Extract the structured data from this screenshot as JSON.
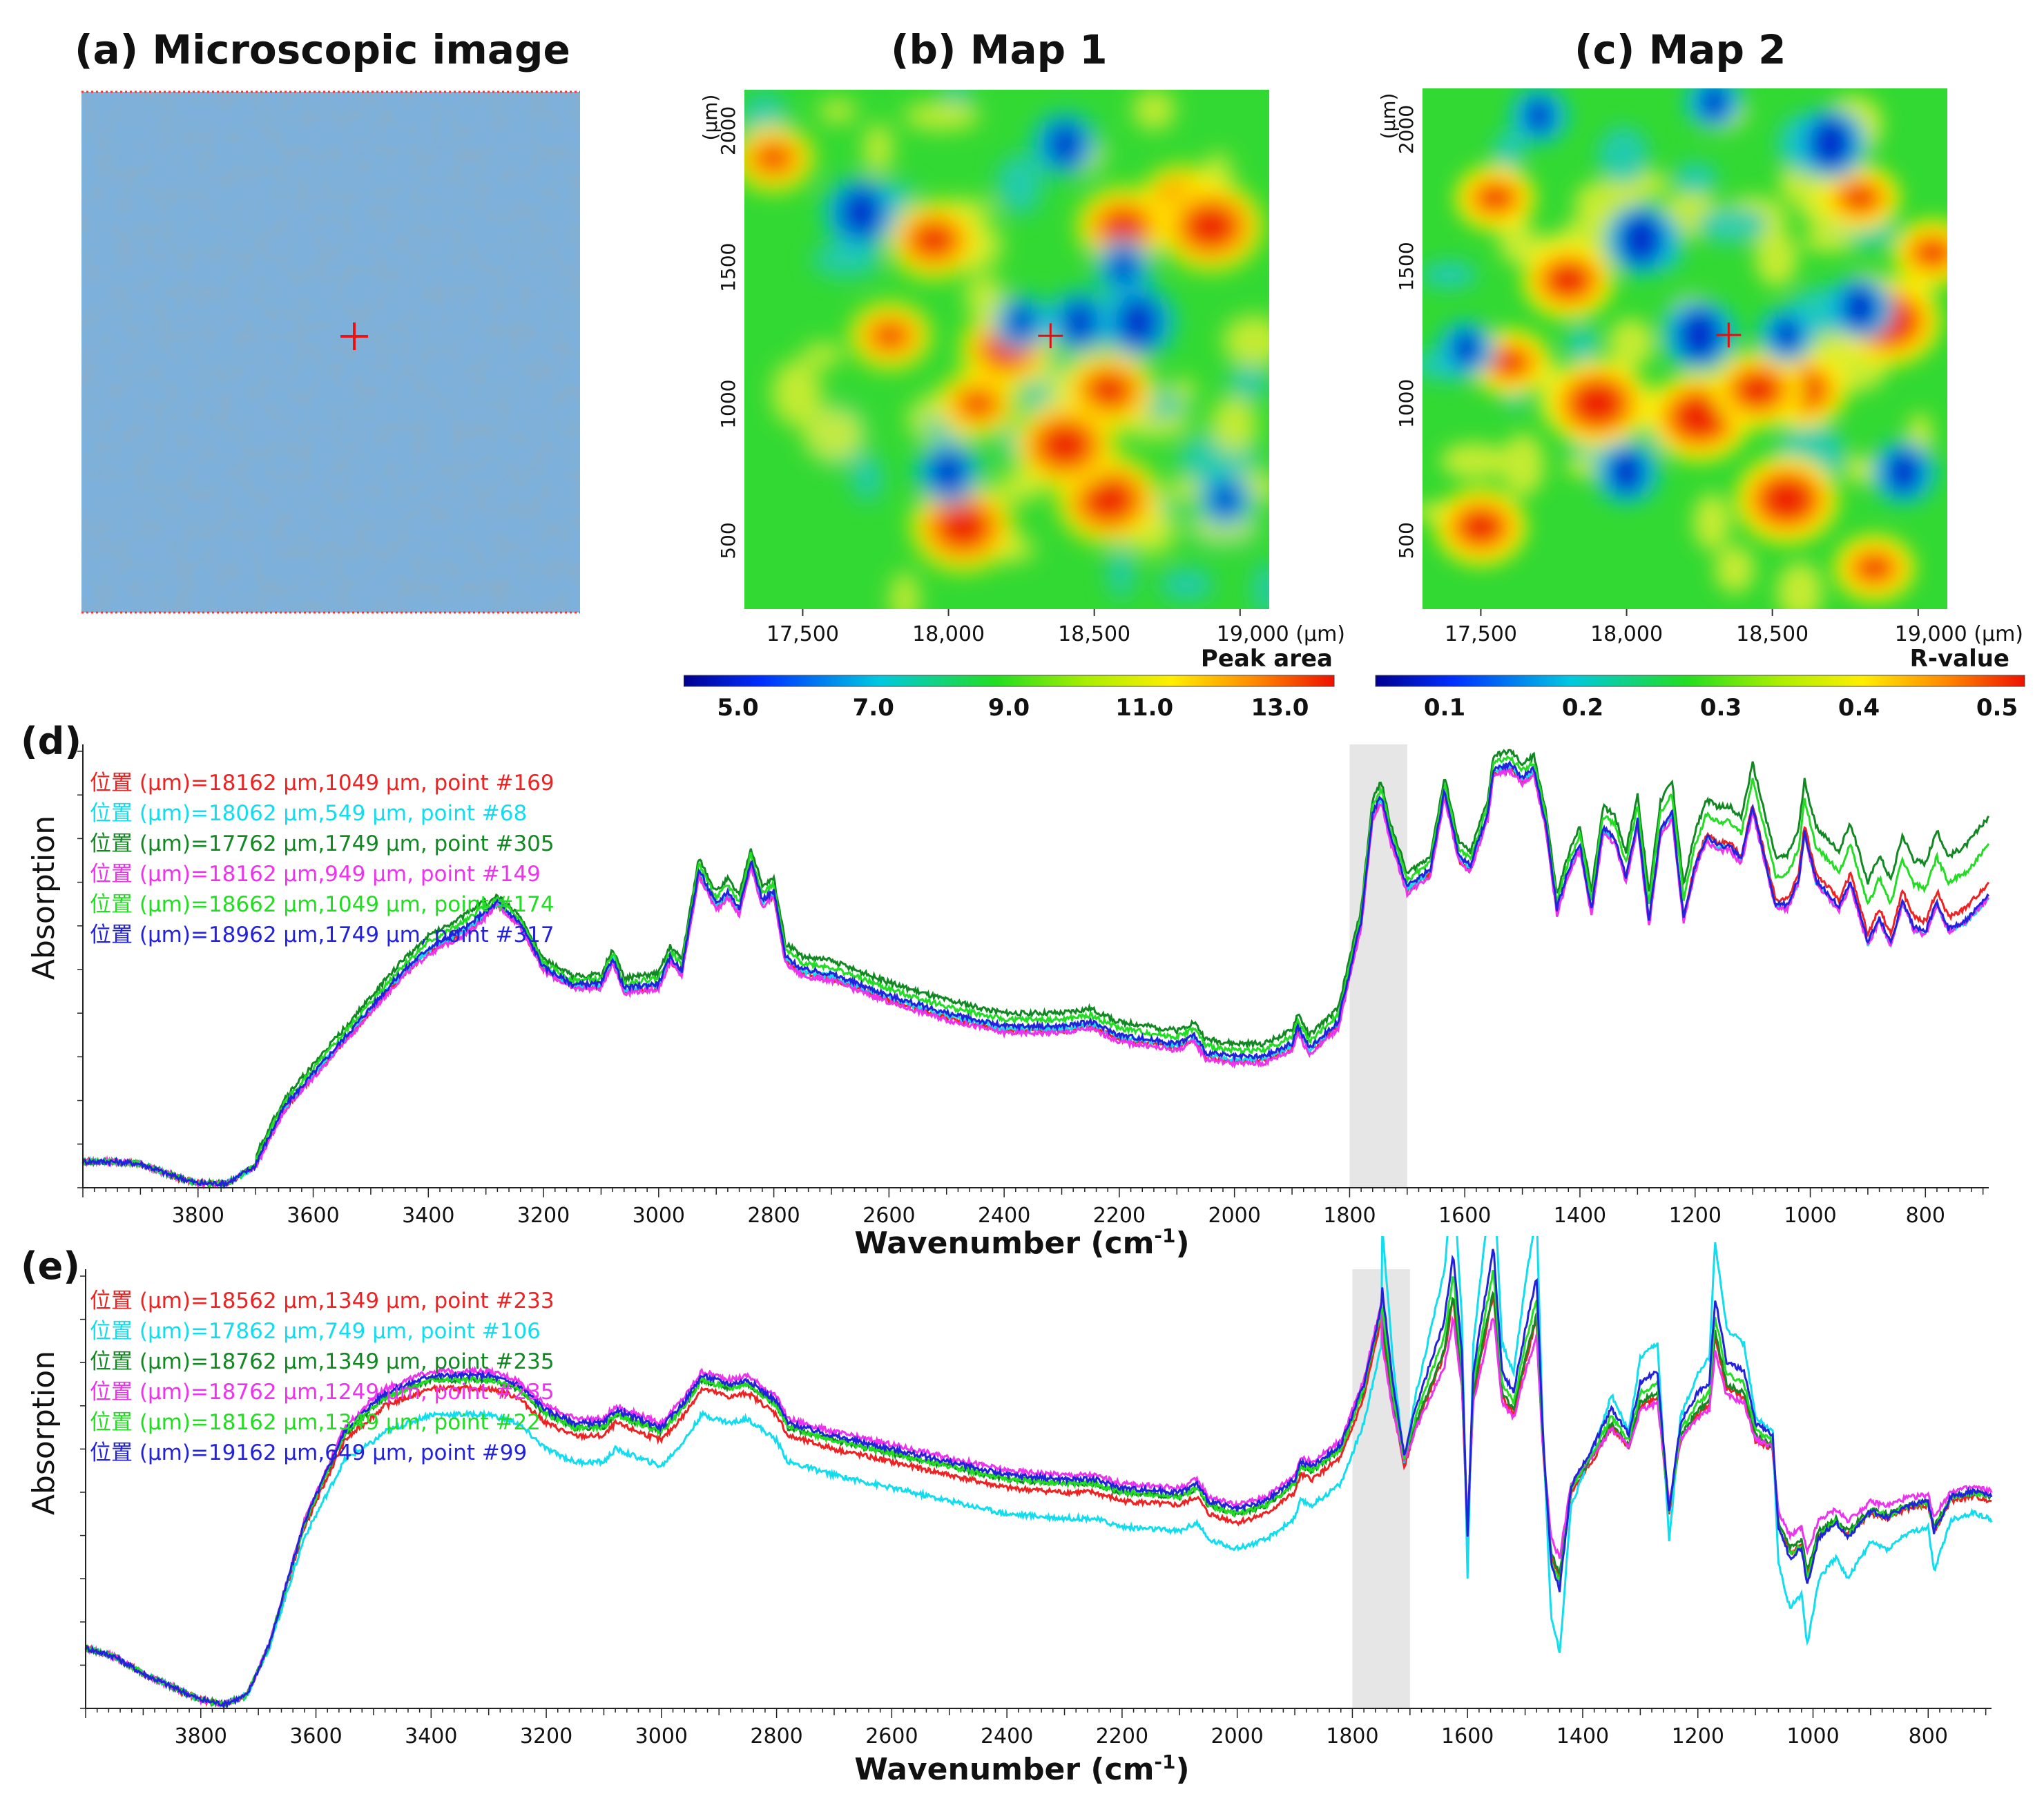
{
  "colors": {
    "red": "#ee2222",
    "cyan": "#11ddee",
    "darkgreen": "#118822",
    "magenta": "#ee33ee",
    "green": "#22dd22",
    "blue": "#2222dd",
    "highlight": "#e6e6e6",
    "micro": "#7aaed8"
  },
  "panels": {
    "a_title": "(a) Microscopic image",
    "b_title": "(b) Map 1",
    "c_title": "(c) Map 2",
    "d_label": "(d)",
    "e_label": "(e)"
  },
  "chart_data": [
    {
      "id": "map1",
      "type": "heatmap",
      "title": "(b) Map 1",
      "x_ticks": [
        "17,500",
        "18,000",
        "18,500",
        "19,000 (μm)"
      ],
      "x_tick_values": [
        17500,
        18000,
        18500,
        19000
      ],
      "y_ticks": [
        "500",
        "1000",
        "1500",
        "2000"
      ],
      "y_tick_values": [
        500,
        1000,
        1500,
        2000
      ],
      "y_unit": "(μm)",
      "xlim": [
        17300,
        19100
      ],
      "ylim": [
        250,
        2150
      ],
      "marker": [
        18350,
        1250
      ],
      "colorbar": {
        "label": "Peak area",
        "ticks": [
          "5.0",
          "7.0",
          "9.0",
          "11.0",
          "13.0"
        ],
        "tick_values": [
          5,
          7,
          9,
          11,
          13
        ],
        "range": [
          4.2,
          13.8
        ]
      },
      "hot_spots": [
        [
          18100,
          1000
        ],
        [
          18550,
          1050
        ],
        [
          18550,
          650
        ],
        [
          18800,
          1750
        ],
        [
          17950,
          1600
        ],
        [
          18050,
          550
        ],
        [
          17400,
          1900
        ],
        [
          18600,
          1650
        ],
        [
          18900,
          1650
        ],
        [
          17800,
          1250
        ],
        [
          18200,
          1200
        ],
        [
          18400,
          850
        ]
      ],
      "cold_spots": [
        [
          18250,
          1300
        ],
        [
          18450,
          1300
        ],
        [
          18650,
          1300
        ],
        [
          18950,
          650
        ],
        [
          18000,
          750
        ],
        [
          17700,
          1700
        ],
        [
          18600,
          1500
        ],
        [
          18400,
          1950
        ]
      ]
    },
    {
      "id": "map2",
      "type": "heatmap",
      "title": "(c) Map 2",
      "x_ticks": [
        "17,500",
        "18,000",
        "18,500",
        "19,000 (μm)"
      ],
      "x_tick_values": [
        17500,
        18000,
        18500,
        19000
      ],
      "y_ticks": [
        "500",
        "1000",
        "1500",
        "2000"
      ],
      "y_tick_values": [
        500,
        1000,
        1500,
        2000
      ],
      "y_unit": "(μm)",
      "xlim": [
        17300,
        19100
      ],
      "ylim": [
        250,
        2150
      ],
      "marker": [
        18350,
        1250
      ],
      "colorbar": {
        "label": "R-value",
        "ticks": [
          "0.1",
          "0.2",
          "0.3",
          "0.4",
          "0.5"
        ],
        "tick_values": [
          0.1,
          0.2,
          0.3,
          0.4,
          0.5
        ],
        "range": [
          0.05,
          0.52
        ]
      },
      "hot_spots": [
        [
          18800,
          1750
        ],
        [
          17800,
          1450
        ],
        [
          18900,
          1300
        ],
        [
          19050,
          1550
        ],
        [
          18600,
          1050
        ],
        [
          18250,
          950
        ],
        [
          17550,
          1750
        ],
        [
          18450,
          1050
        ],
        [
          17900,
          1000
        ],
        [
          18850,
          400
        ],
        [
          17500,
          550
        ],
        [
          18550,
          650
        ],
        [
          17600,
          1150
        ]
      ],
      "cold_spots": [
        [
          17700,
          2050
        ],
        [
          18950,
          750
        ],
        [
          18250,
          1250
        ],
        [
          18550,
          1250
        ],
        [
          18000,
          750
        ],
        [
          18700,
          1950
        ],
        [
          18300,
          2100
        ],
        [
          18800,
          1350
        ],
        [
          18050,
          1600
        ],
        [
          17450,
          1200
        ]
      ]
    },
    {
      "id": "spectra_d",
      "type": "line",
      "panel": "(d)",
      "xlabel": "Wavenumber (cm",
      "xlabel_sup": "-1",
      "xlabel_end": ")",
      "ylabel": "Absorption",
      "xlim": [
        4000,
        690
      ],
      "ylim": [
        0,
        1
      ],
      "x_ticks": [
        "3800",
        "3600",
        "3400",
        "3200",
        "3000",
        "2800",
        "2600",
        "2400",
        "2200",
        "2000",
        "1800",
        "1600",
        "1400",
        "1200",
        "1000",
        "800"
      ],
      "x_tick_values": [
        3800,
        3600,
        3400,
        3200,
        3000,
        2800,
        2600,
        2400,
        2200,
        2000,
        1800,
        1600,
        1400,
        1200,
        1000,
        800
      ],
      "highlight_band": [
        1800,
        1700
      ],
      "series": [
        {
          "name": "位置 (μm)=18162 μm,1049 μm, point #169",
          "color": "#ee2222",
          "offset": 0,
          "tail": 0.7
        },
        {
          "name": "位置 (μm)=18062 μm,549 μm, point #68",
          "color": "#11ddee",
          "offset": 0.005,
          "tail": 0.66
        },
        {
          "name": "位置 (μm)=17762 μm,1749 μm, point #305",
          "color": "#118822",
          "offset": 0.04,
          "tail": 0.81
        },
        {
          "name": "位置 (μm)=18162 μm,949 μm, point #149",
          "color": "#ee33ee",
          "offset": -0.005,
          "tail": 0.67
        },
        {
          "name": "位置 (μm)=18662 μm,1049 μm, point #174",
          "color": "#22dd22",
          "offset": 0.025,
          "tail": 0.76
        },
        {
          "name": "位置 (μm)=18962 μm,1749 μm, point #317",
          "color": "#2222dd",
          "offset": 0.01,
          "tail": 0.66
        }
      ],
      "profile": [
        [
          4000,
          0.06
        ],
        [
          3950,
          0.06
        ],
        [
          3900,
          0.055
        ],
        [
          3850,
          0.03
        ],
        [
          3800,
          0.01
        ],
        [
          3750,
          0.01
        ],
        [
          3700,
          0.05
        ],
        [
          3650,
          0.18
        ],
        [
          3550,
          0.33
        ],
        [
          3450,
          0.48
        ],
        [
          3400,
          0.54
        ],
        [
          3330,
          0.59
        ],
        [
          3280,
          0.65
        ],
        [
          3240,
          0.6
        ],
        [
          3200,
          0.5
        ],
        [
          3150,
          0.46
        ],
        [
          3100,
          0.46
        ],
        [
          3080,
          0.52
        ],
        [
          3060,
          0.45
        ],
        [
          3000,
          0.46
        ],
        [
          2980,
          0.52
        ],
        [
          2960,
          0.49
        ],
        [
          2930,
          0.72
        ],
        [
          2900,
          0.64
        ],
        [
          2880,
          0.67
        ],
        [
          2860,
          0.63
        ],
        [
          2840,
          0.74
        ],
        [
          2820,
          0.65
        ],
        [
          2800,
          0.67
        ],
        [
          2780,
          0.52
        ],
        [
          2750,
          0.49
        ],
        [
          2700,
          0.48
        ],
        [
          2600,
          0.43
        ],
        [
          2500,
          0.39
        ],
        [
          2400,
          0.36
        ],
        [
          2300,
          0.36
        ],
        [
          2250,
          0.37
        ],
        [
          2200,
          0.34
        ],
        [
          2100,
          0.32
        ],
        [
          2070,
          0.34
        ],
        [
          2050,
          0.3
        ],
        [
          2000,
          0.29
        ],
        [
          1950,
          0.29
        ],
        [
          1900,
          0.32
        ],
        [
          1890,
          0.36
        ],
        [
          1870,
          0.31
        ],
        [
          1820,
          0.37
        ],
        [
          1780,
          0.6
        ],
        [
          1760,
          0.85
        ],
        [
          1745,
          0.89
        ],
        [
          1730,
          0.8
        ],
        [
          1700,
          0.68
        ],
        [
          1660,
          0.72
        ],
        [
          1635,
          0.9
        ],
        [
          1610,
          0.75
        ],
        [
          1590,
          0.73
        ],
        [
          1560,
          0.85
        ],
        [
          1550,
          0.95
        ],
        [
          1520,
          0.96
        ],
        [
          1500,
          0.93
        ],
        [
          1480,
          0.95
        ],
        [
          1460,
          0.83
        ],
        [
          1440,
          0.63
        ],
        [
          1420,
          0.72
        ],
        [
          1400,
          0.78
        ],
        [
          1380,
          0.63
        ],
        [
          1360,
          0.82
        ],
        [
          1340,
          0.8
        ],
        [
          1320,
          0.71
        ],
        [
          1300,
          0.84
        ],
        [
          1280,
          0.61
        ],
        [
          1260,
          0.82
        ],
        [
          1240,
          0.86
        ],
        [
          1220,
          0.62
        ],
        [
          1200,
          0.74
        ],
        [
          1180,
          0.81
        ],
        [
          1160,
          0.79
        ],
        [
          1140,
          0.79
        ],
        [
          1120,
          0.76
        ],
        [
          1100,
          0.88
        ],
        [
          1080,
          0.77
        ],
        [
          1060,
          0.66
        ],
        [
          1040,
          0.66
        ],
        [
          1020,
          0.72
        ],
        [
          1010,
          0.83
        ],
        [
          990,
          0.72
        ],
        [
          970,
          0.69
        ],
        [
          950,
          0.66
        ],
        [
          930,
          0.72
        ],
        [
          900,
          0.58
        ],
        [
          880,
          0.64
        ],
        [
          860,
          0.58
        ],
        [
          840,
          0.68
        ],
        [
          820,
          0.62
        ],
        [
          800,
          0.61
        ],
        [
          780,
          0.68
        ],
        [
          760,
          0.62
        ],
        [
          730,
          0.64
        ],
        [
          690,
          0.7
        ]
      ]
    },
    {
      "id": "spectra_e",
      "type": "line",
      "panel": "(e)",
      "xlabel": "Wavenumber (cm",
      "xlabel_sup": "-1",
      "xlabel_end": ")",
      "ylabel": "Absorption",
      "xlim": [
        4000,
        690
      ],
      "ylim": [
        0,
        1
      ],
      "x_ticks": [
        "3800",
        "3600",
        "3400",
        "3200",
        "3000",
        "2800",
        "2600",
        "2400",
        "2200",
        "2000",
        "1800",
        "1600",
        "1400",
        "1200",
        "1000",
        "800"
      ],
      "x_tick_values": [
        3800,
        3600,
        3400,
        3200,
        3000,
        2800,
        2600,
        2400,
        2200,
        2000,
        1800,
        1600,
        1400,
        1200,
        1000,
        800
      ],
      "highlight_band": [
        1800,
        1700
      ],
      "series": [
        {
          "name": "位置 (μm)=18562 μm,1349 μm, point #233",
          "color": "#ee2222",
          "offset": 0,
          "depth": 1.0
        },
        {
          "name": "位置 (μm)=17862 μm,749 μm, point #106",
          "color": "#11ddee",
          "offset": -0.06,
          "depth": 1.7
        },
        {
          "name": "位置 (μm)=18762 μm,1349 μm, point #235",
          "color": "#118822",
          "offset": 0.02,
          "depth": 1.0
        },
        {
          "name": "位置 (μm)=18762 μm,1249 μm, point #235",
          "color": "#ee33ee",
          "offset": 0.04,
          "depth": 0.85
        },
        {
          "name": "位置 (μm)=18162 μm,1349 μm, point #22",
          "color": "#22dd22",
          "offset": 0.02,
          "depth": 1.1
        },
        {
          "name": "位置 (μm)=19162 μm,649 μm, point #99",
          "color": "#2222dd",
          "offset": 0.03,
          "depth": 1.2
        }
      ],
      "profile": [
        [
          4000,
          0.14
        ],
        [
          3950,
          0.12
        ],
        [
          3900,
          0.08
        ],
        [
          3850,
          0.05
        ],
        [
          3800,
          0.02
        ],
        [
          3760,
          0.01
        ],
        [
          3720,
          0.03
        ],
        [
          3680,
          0.15
        ],
        [
          3620,
          0.42
        ],
        [
          3550,
          0.62
        ],
        [
          3480,
          0.7
        ],
        [
          3400,
          0.74
        ],
        [
          3300,
          0.74
        ],
        [
          3250,
          0.72
        ],
        [
          3200,
          0.66
        ],
        [
          3150,
          0.63
        ],
        [
          3100,
          0.63
        ],
        [
          3080,
          0.66
        ],
        [
          3000,
          0.62
        ],
        [
          2960,
          0.68
        ],
        [
          2930,
          0.74
        ],
        [
          2880,
          0.72
        ],
        [
          2850,
          0.73
        ],
        [
          2800,
          0.68
        ],
        [
          2780,
          0.63
        ],
        [
          2700,
          0.6
        ],
        [
          2600,
          0.57
        ],
        [
          2500,
          0.54
        ],
        [
          2400,
          0.51
        ],
        [
          2300,
          0.5
        ],
        [
          2250,
          0.5
        ],
        [
          2200,
          0.48
        ],
        [
          2100,
          0.47
        ],
        [
          2070,
          0.49
        ],
        [
          2050,
          0.45
        ],
        [
          2000,
          0.43
        ],
        [
          1950,
          0.45
        ],
        [
          1900,
          0.5
        ],
        [
          1890,
          0.54
        ],
        [
          1870,
          0.53
        ],
        [
          1820,
          0.58
        ],
        [
          1780,
          0.72
        ],
        [
          1750,
          0.9
        ],
        [
          1730,
          0.7
        ],
        [
          1710,
          0.56
        ],
        [
          1690,
          0.65
        ],
        [
          1640,
          0.82
        ],
        [
          1625,
          0.95
        ],
        [
          1610,
          0.76
        ],
        [
          1600,
          0.4
        ],
        [
          1590,
          0.72
        ],
        [
          1570,
          0.86
        ],
        [
          1555,
          0.96
        ],
        [
          1540,
          0.72
        ],
        [
          1520,
          0.68
        ],
        [
          1500,
          0.8
        ],
        [
          1480,
          0.9
        ],
        [
          1470,
          0.62
        ],
        [
          1455,
          0.35
        ],
        [
          1440,
          0.3
        ],
        [
          1420,
          0.5
        ],
        [
          1380,
          0.58
        ],
        [
          1350,
          0.65
        ],
        [
          1320,
          0.6
        ],
        [
          1300,
          0.7
        ],
        [
          1270,
          0.72
        ],
        [
          1250,
          0.45
        ],
        [
          1230,
          0.62
        ],
        [
          1200,
          0.68
        ],
        [
          1180,
          0.7
        ],
        [
          1170,
          0.86
        ],
        [
          1150,
          0.74
        ],
        [
          1120,
          0.72
        ],
        [
          1100,
          0.62
        ],
        [
          1070,
          0.6
        ],
        [
          1060,
          0.42
        ],
        [
          1040,
          0.36
        ],
        [
          1020,
          0.38
        ],
        [
          1010,
          0.31
        ],
        [
          990,
          0.4
        ],
        [
          960,
          0.43
        ],
        [
          940,
          0.4
        ],
        [
          900,
          0.45
        ],
        [
          870,
          0.44
        ],
        [
          840,
          0.46
        ],
        [
          800,
          0.47
        ],
        [
          790,
          0.41
        ],
        [
          760,
          0.48
        ],
        [
          720,
          0.49
        ],
        [
          690,
          0.48
        ]
      ]
    }
  ]
}
